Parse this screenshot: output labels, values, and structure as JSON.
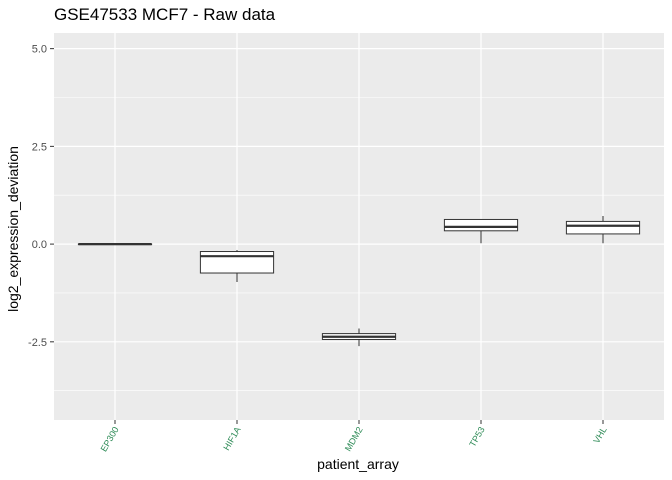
{
  "chart_data": {
    "type": "boxplot",
    "title": "GSE47533 MCF7 - Raw data",
    "xlabel": "patient_array",
    "ylabel": "log2_expression_deviation",
    "categories": [
      "EP300",
      "HIF1A",
      "MDM2",
      "TP53",
      "VHL"
    ],
    "y_ticks": [
      -2.5,
      0.0,
      2.5,
      5.0
    ],
    "y_tick_labels": [
      "-2.5",
      "0.0",
      "2.5",
      "5.0"
    ],
    "ylim": [
      -4.5,
      5.4
    ],
    "grid": true,
    "colors": {
      "panel_background": "#ebebeb",
      "grid_major": "#ffffff",
      "box_fill": "#ffffff",
      "box_line": "#333333",
      "x_tick_label": "#2e8b57"
    },
    "boxes": [
      {
        "category": "EP300",
        "whisker_low": 0.0,
        "q1": 0.0,
        "median": 0.0,
        "q3": 0.0,
        "whisker_high": 0.0
      },
      {
        "category": "HIF1A",
        "whisker_low": -0.97,
        "q1": -0.74,
        "median": -0.31,
        "q3": -0.19,
        "whisker_high": -0.15
      },
      {
        "category": "MDM2",
        "whisker_low": -2.61,
        "q1": -2.44,
        "median": -2.37,
        "q3": -2.29,
        "whisker_high": -2.16
      },
      {
        "category": "TP53",
        "whisker_low": 0.02,
        "q1": 0.34,
        "median": 0.44,
        "q3": 0.63,
        "whisker_high": 0.63
      },
      {
        "category": "VHL",
        "whisker_low": 0.02,
        "q1": 0.26,
        "median": 0.47,
        "q3": 0.58,
        "whisker_high": 0.72
      }
    ]
  }
}
